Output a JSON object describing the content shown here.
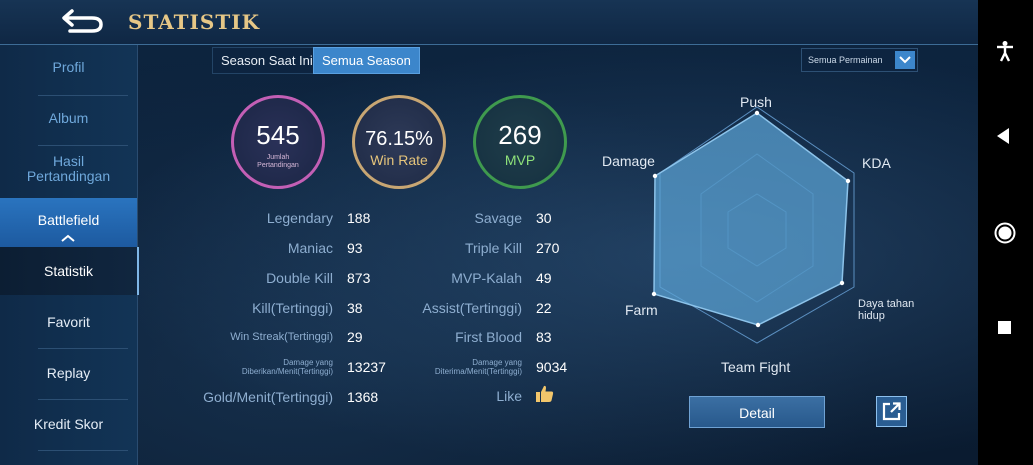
{
  "header": {
    "title": "STATISTIK",
    "back_icon": "back-arrow-icon"
  },
  "sidebar": {
    "items": [
      {
        "label": "Profil"
      },
      {
        "label": "Album"
      },
      {
        "label": "Hasil Pertandingan"
      },
      {
        "label": "Battlefield"
      },
      {
        "label": "Statistik"
      },
      {
        "label": "Favorit"
      },
      {
        "label": "Replay"
      },
      {
        "label": "Kredit Skor"
      }
    ]
  },
  "tabs": [
    {
      "label": "Season Saat Ini"
    },
    {
      "label": "Semua Season",
      "selected": true
    }
  ],
  "mode_filter": {
    "selected": "Semua Permainan"
  },
  "summary": {
    "matches": {
      "value": "545",
      "label": "Jumlah Pertandingan"
    },
    "win_rate": {
      "value": "76.15%",
      "label": "Win Rate"
    },
    "mvp": {
      "value": "269",
      "label": "MVP"
    }
  },
  "stats_left": [
    {
      "label": "Legendary",
      "value": "188"
    },
    {
      "label": "Maniac",
      "value": "93"
    },
    {
      "label": "Double Kill",
      "value": "873"
    },
    {
      "label": "Kill(Tertinggi)",
      "value": "38"
    },
    {
      "label": "Win Streak(Tertinggi)",
      "value": "29"
    },
    {
      "label": "Damage yang Diberikan/Menit(Tertinggi)",
      "value": "13237"
    },
    {
      "label": "Gold/Menit(Tertinggi)",
      "value": "1368"
    }
  ],
  "stats_right": [
    {
      "label": "Savage",
      "value": "30"
    },
    {
      "label": "Triple Kill",
      "value": "270"
    },
    {
      "label": "MVP-Kalah",
      "value": "49"
    },
    {
      "label": "Assist(Tertinggi)",
      "value": "22"
    },
    {
      "label": "First Blood",
      "value": "83"
    },
    {
      "label": "Damage yang Diterima/Menit(Tertinggi)",
      "value": "9034"
    },
    {
      "label": "Like",
      "value": "",
      "icon": "thumbs-up-icon"
    }
  ],
  "radar": {
    "axes": [
      "Push",
      "KDA",
      "Daya tahan hidup",
      "Team Fight",
      "Farm",
      "Damage"
    ]
  },
  "actions": {
    "detail_label": "Detail",
    "share_icon": "share-icon"
  },
  "colors": {
    "accent": "#3c86cb",
    "title_gold": "#e6c786",
    "matches_ring": "#c35fb5",
    "winrate_ring": "#c8a673",
    "mvp_ring": "#3f9a4e",
    "radar_fill": "#5ca3d6"
  },
  "system_nav": {
    "icons": [
      "accessibility-icon",
      "back-triangle-icon",
      "home-circle-icon",
      "recents-square-icon"
    ]
  }
}
